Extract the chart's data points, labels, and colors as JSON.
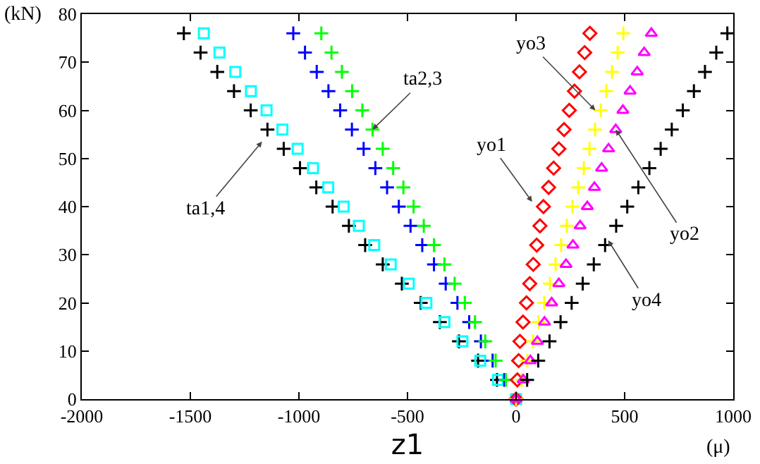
{
  "chart_data": {
    "type": "scatter",
    "xlabel": "z1",
    "ylabel": "(kN)",
    "xlim": [
      -2000,
      1000
    ],
    "ylim": [
      0,
      80
    ],
    "xticks": [
      -2000,
      -1500,
      -1000,
      -500,
      0,
      500,
      1000
    ],
    "yticks": [
      0,
      10,
      20,
      30,
      40,
      50,
      60,
      70,
      80
    ],
    "grid": false,
    "annotations": [
      {
        "text": "ta1,4",
        "x": -1170,
        "y": 53.5
      },
      {
        "text": "ta2,3",
        "x": -661,
        "y": 56
      },
      {
        "text": "yo1",
        "x": 74,
        "y": 41
      },
      {
        "text": "yo3",
        "x": 365,
        "y": 60
      },
      {
        "text": "yo2",
        "x": 459,
        "y": 56
      },
      {
        "text": "yo4",
        "x": 424,
        "y": 33
      },
      "(μ)"
    ],
    "series": [
      {
        "color": "#000000",
        "marker": "cross",
        "x": [
          0,
          -88,
          -175,
          -263,
          -351,
          -439,
          -526,
          -614,
          -695,
          -770,
          -845,
          -920,
          -995,
          -1070,
          -1145,
          -1222,
          -1299,
          -1376,
          -1453,
          -1530
        ],
        "values": [
          0,
          4,
          8,
          12,
          16,
          20,
          24,
          28,
          32,
          36,
          40,
          44,
          48,
          52,
          56,
          60,
          64,
          68,
          72,
          76
        ]
      },
      {
        "color": "#00ffff",
        "marker": "square",
        "x": [
          0,
          -83,
          -165,
          -247,
          -330,
          -413,
          -494,
          -577,
          -653,
          -724,
          -794,
          -865,
          -935,
          -1006,
          -1076,
          -1149,
          -1221,
          -1293,
          -1366,
          -1438
        ],
        "values": [
          0,
          4,
          8,
          12,
          16,
          20,
          24,
          28,
          32,
          36,
          40,
          44,
          48,
          52,
          56,
          60,
          64,
          68,
          72,
          76
        ]
      },
      {
        "color": "#0000ff",
        "marker": "cross",
        "x": [
          -54,
          -108,
          -162,
          -216,
          -270,
          -324,
          -378,
          -432,
          -486,
          -540,
          -594,
          -648,
          -702,
          -756,
          -810,
          -864,
          -918,
          -972,
          -1026
        ],
        "values": [
          4,
          8,
          12,
          16,
          20,
          24,
          28,
          32,
          36,
          40,
          44,
          48,
          52,
          56,
          60,
          64,
          68,
          72,
          76
        ]
      },
      {
        "color": "#00ff00",
        "marker": "cross",
        "x": [
          0,
          -47,
          -94,
          -142,
          -189,
          -236,
          -283,
          -330,
          -378,
          -425,
          -472,
          -519,
          -566,
          -614,
          -661,
          -708,
          -755,
          -802,
          -850,
          -897
        ],
        "values": [
          0,
          4,
          8,
          12,
          16,
          20,
          24,
          28,
          32,
          36,
          40,
          44,
          48,
          52,
          56,
          60,
          64,
          68,
          72,
          76
        ]
      },
      {
        "color": "#ff0000",
        "marker": "diamond",
        "x": [
          0,
          6,
          12,
          18,
          32,
          48,
          63,
          79,
          95,
          110,
          126,
          150,
          173,
          197,
          221,
          245,
          269,
          292,
          316,
          340
        ],
        "values": [
          0,
          4,
          8,
          12,
          16,
          20,
          24,
          28,
          32,
          36,
          40,
          44,
          48,
          52,
          56,
          60,
          64,
          68,
          72,
          76
        ]
      },
      {
        "color": "#ffff00",
        "marker": "cross",
        "x": [
          0,
          26,
          52,
          78,
          104,
          130,
          156,
          182,
          208,
          234,
          260,
          286,
          312,
          338,
          364,
          390,
          416,
          442,
          468,
          494
        ],
        "values": [
          0,
          4,
          8,
          12,
          16,
          20,
          24,
          28,
          32,
          36,
          40,
          44,
          48,
          52,
          56,
          60,
          64,
          68,
          72,
          76
        ]
      },
      {
        "color": "#ff00ff",
        "marker": "triangle",
        "x": [
          0,
          33,
          66,
          98,
          131,
          164,
          197,
          230,
          262,
          295,
          328,
          361,
          394,
          426,
          459,
          492,
          525,
          558,
          590,
          623
        ],
        "values": [
          0,
          4,
          8,
          12,
          16,
          20,
          24,
          28,
          32,
          36,
          40,
          44,
          48,
          52,
          56,
          60,
          64,
          68,
          72,
          76
        ]
      },
      {
        "color": "#000000",
        "marker": "cross",
        "x": [
          51,
          102,
          154,
          205,
          256,
          307,
          358,
          410,
          461,
          512,
          563,
          614,
          666,
          717,
          768,
          819,
          870,
          922,
          973
        ],
        "values": [
          4,
          8,
          12,
          16,
          20,
          24,
          28,
          32,
          36,
          40,
          44,
          48,
          52,
          56,
          60,
          64,
          68,
          72,
          76
        ]
      }
    ]
  }
}
